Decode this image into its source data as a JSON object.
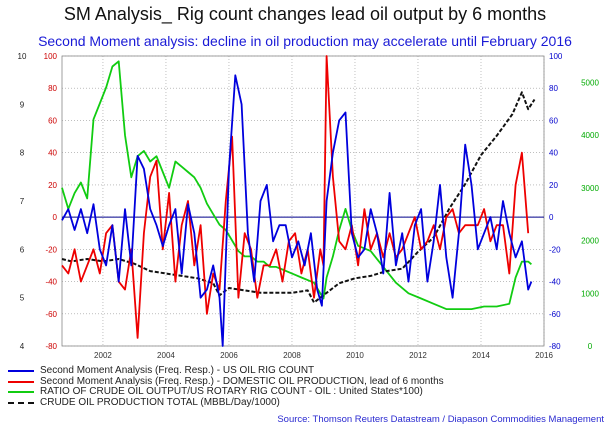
{
  "title": "SM Analysis_ Rig count changes lead oil output by 6 months",
  "subtitle": "Second Moment analysis: decline in oil production may accelerate until February 2016",
  "source": "Source: Thomson Reuters Datastream / Diapason Commodities Management",
  "colors": {
    "blue": "#0000dd",
    "red": "#ee0000",
    "green": "#11cc11",
    "black": "#111111",
    "red_axis": "#cc0000",
    "blue_axis": "#0000cc",
    "green_axis": "#00aa00"
  },
  "chart_data": {
    "type": "line",
    "x_range": [
      2000.7,
      2016.0
    ],
    "x_ticks": [
      "2002",
      "2004",
      "2006",
      "2008",
      "2010",
      "2012",
      "2014",
      "2016"
    ],
    "grid": true,
    "legend_position": "bottom-left",
    "axes": {
      "left_black": {
        "range": [
          4,
          10
        ],
        "ticks": [
          "4",
          "5",
          "6",
          "7",
          "8",
          "9",
          "10"
        ]
      },
      "left_red": {
        "range": [
          -80,
          100
        ],
        "ticks": [
          "-80",
          "-60",
          "-40",
          "-20",
          "0",
          "20",
          "40",
          "60",
          "80",
          "100"
        ]
      },
      "right_blue": {
        "range": [
          -80,
          100
        ],
        "ticks": [
          "-80",
          "-60",
          "-40",
          "-20",
          "0",
          "20",
          "40",
          "60",
          "80",
          "100"
        ]
      },
      "right_green": {
        "range": [
          0,
          5500
        ],
        "ticks": [
          "0",
          "1000",
          "2000",
          "3000",
          "4000",
          "5000"
        ]
      }
    },
    "series": [
      {
        "name": "Second Moment Analysis (Freq. Resp.) - US OIL RIG COUNT",
        "color": "blue",
        "axis": "right_blue",
        "x": [
          2000.7,
          2000.9,
          2001.1,
          2001.3,
          2001.5,
          2001.7,
          2001.9,
          2002.1,
          2002.3,
          2002.5,
          2002.7,
          2002.9,
          2003.1,
          2003.3,
          2003.5,
          2003.7,
          2003.9,
          2004.1,
          2004.3,
          2004.5,
          2004.7,
          2004.9,
          2005.1,
          2005.3,
          2005.5,
          2005.7,
          2005.8,
          2006.0,
          2006.2,
          2006.4,
          2006.6,
          2006.8,
          2007.0,
          2007.2,
          2007.4,
          2007.6,
          2007.8,
          2008.0,
          2008.2,
          2008.4,
          2008.6,
          2008.8,
          2008.95,
          2009.1,
          2009.3,
          2009.5,
          2009.7,
          2009.9,
          2010.1,
          2010.3,
          2010.5,
          2010.7,
          2010.9,
          2011.1,
          2011.3,
          2011.5,
          2011.7,
          2011.9,
          2012.1,
          2012.3,
          2012.5,
          2012.7,
          2012.9,
          2013.1,
          2013.3,
          2013.5,
          2013.7,
          2013.9,
          2014.1,
          2014.3,
          2014.5,
          2014.7,
          2014.9,
          2015.1,
          2015.3,
          2015.5,
          2015.6
        ],
        "y": [
          -2,
          5,
          -8,
          5,
          -10,
          8,
          -20,
          -30,
          -5,
          -40,
          5,
          -30,
          38,
          30,
          5,
          -5,
          -18,
          -5,
          5,
          -35,
          8,
          -10,
          -50,
          -45,
          -30,
          -50,
          -80,
          30,
          88,
          70,
          -10,
          -40,
          10,
          20,
          -15,
          -5,
          -5,
          -25,
          -15,
          -30,
          -10,
          -45,
          -55,
          10,
          40,
          60,
          65,
          -10,
          -25,
          -20,
          5,
          -10,
          -35,
          15,
          -30,
          -10,
          -40,
          -5,
          5,
          -40,
          -15,
          20,
          -25,
          -50,
          -10,
          45,
          20,
          -20,
          -10,
          0,
          -20,
          10,
          -10,
          -25,
          -15,
          -45,
          -40
        ]
      },
      {
        "name": "Second Moment Analysis (Freq. Resp.) - DOMESTIC OIL PRODUCTION, lead of 6 months",
        "color": "red",
        "axis": "left_red",
        "x": [
          2000.7,
          2000.9,
          2001.1,
          2001.3,
          2001.5,
          2001.7,
          2001.9,
          2002.1,
          2002.3,
          2002.5,
          2002.7,
          2002.9,
          2003.1,
          2003.3,
          2003.5,
          2003.7,
          2003.9,
          2004.1,
          2004.3,
          2004.5,
          2004.7,
          2004.9,
          2005.1,
          2005.3,
          2005.5,
          2005.7,
          2005.9,
          2006.1,
          2006.3,
          2006.5,
          2006.7,
          2006.9,
          2007.1,
          2007.3,
          2007.5,
          2007.7,
          2007.9,
          2008.1,
          2008.3,
          2008.5,
          2008.7,
          2008.9,
          2009.0,
          2009.1,
          2009.3,
          2009.5,
          2009.7,
          2009.9,
          2010.1,
          2010.3,
          2010.5,
          2010.7,
          2010.9,
          2011.1,
          2011.3,
          2011.5,
          2011.7,
          2011.9,
          2012.1,
          2012.3,
          2012.5,
          2012.7,
          2012.9,
          2013.1,
          2013.3,
          2013.5,
          2013.7,
          2013.9,
          2014.1,
          2014.3,
          2014.5,
          2014.7,
          2014.9,
          2015.1,
          2015.3,
          2015.5
        ],
        "y": [
          -30,
          -35,
          -20,
          -40,
          -30,
          -20,
          -35,
          -10,
          -5,
          -40,
          -45,
          -20,
          -75,
          -10,
          25,
          35,
          -20,
          15,
          -40,
          -5,
          10,
          -30,
          -5,
          -60,
          -35,
          -45,
          10,
          50,
          -50,
          -10,
          -20,
          -50,
          -30,
          -30,
          -20,
          -40,
          -15,
          -10,
          -35,
          -20,
          -50,
          -20,
          -30,
          100,
          25,
          -15,
          -20,
          -5,
          -30,
          5,
          -20,
          -10,
          -25,
          -10,
          -25,
          -20,
          -10,
          0,
          -20,
          -15,
          -5,
          -20,
          0,
          5,
          -10,
          -5,
          -5,
          -5,
          5,
          -15,
          -5,
          -5,
          -35,
          20,
          40,
          -10
        ]
      },
      {
        "name": "RATIO OF CRUDE OIL OUTPUT/US ROTARY RIG COUNT - OIL : United States*100)",
        "color": "green",
        "axis": "right_green",
        "x": [
          2000.7,
          2000.9,
          2001.1,
          2001.3,
          2001.5,
          2001.7,
          2001.9,
          2002.1,
          2002.3,
          2002.5,
          2002.7,
          2002.9,
          2003.1,
          2003.3,
          2003.5,
          2003.7,
          2003.9,
          2004.1,
          2004.3,
          2004.5,
          2004.7,
          2004.9,
          2005.1,
          2005.3,
          2005.5,
          2005.7,
          2005.9,
          2006.1,
          2006.3,
          2006.5,
          2006.7,
          2006.9,
          2007.1,
          2007.3,
          2007.5,
          2007.7,
          2007.9,
          2008.1,
          2008.3,
          2008.5,
          2008.7,
          2008.9,
          2009.0,
          2009.1,
          2009.3,
          2009.5,
          2009.7,
          2009.9,
          2010.1,
          2010.5,
          2010.9,
          2011.3,
          2011.7,
          2012.1,
          2012.5,
          2012.9,
          2013.3,
          2013.7,
          2014.1,
          2014.5,
          2014.9,
          2015.1,
          2015.3,
          2015.5,
          2015.6
        ],
        "y": [
          3000,
          2600,
          2900,
          3100,
          2800,
          4300,
          4600,
          4900,
          5300,
          5400,
          4000,
          3200,
          3600,
          3700,
          3500,
          3600,
          3300,
          3000,
          3500,
          3400,
          3300,
          3200,
          3000,
          2700,
          2500,
          2300,
          2200,
          2000,
          1800,
          1700,
          1700,
          1600,
          1600,
          1500,
          1500,
          1450,
          1400,
          1350,
          1300,
          1250,
          1200,
          1000,
          900,
          1300,
          1700,
          2200,
          2600,
          2200,
          1900,
          1800,
          1500,
          1200,
          1000,
          900,
          800,
          700,
          700,
          700,
          750,
          750,
          800,
          1300,
          1600,
          1600,
          1550
        ]
      },
      {
        "name": "CRUDE OIL PRODUCTION TOTAL (MBBL/Day/1000)",
        "color": "black",
        "axis": "left_black",
        "dashed": true,
        "x": [
          2000.7,
          2001.0,
          2001.5,
          2002.0,
          2002.5,
          2003.0,
          2003.5,
          2004.0,
          2004.5,
          2005.0,
          2005.5,
          2005.7,
          2006.0,
          2006.5,
          2007.0,
          2007.5,
          2008.0,
          2008.5,
          2008.7,
          2008.9,
          2009.2,
          2009.5,
          2010.0,
          2010.5,
          2011.0,
          2011.5,
          2012.0,
          2012.5,
          2013.0,
          2013.5,
          2014.0,
          2014.5,
          2015.0,
          2015.3,
          2015.5,
          2015.7
        ],
        "y": [
          5.8,
          5.75,
          5.8,
          5.75,
          5.8,
          5.7,
          5.55,
          5.5,
          5.45,
          5.4,
          5.3,
          5.05,
          5.2,
          5.15,
          5.1,
          5.1,
          5.1,
          5.15,
          4.9,
          5.0,
          5.15,
          5.3,
          5.4,
          5.45,
          5.55,
          5.6,
          5.95,
          6.25,
          6.85,
          7.35,
          7.95,
          8.35,
          8.8,
          9.25,
          8.9,
          9.1
        ]
      }
    ]
  }
}
